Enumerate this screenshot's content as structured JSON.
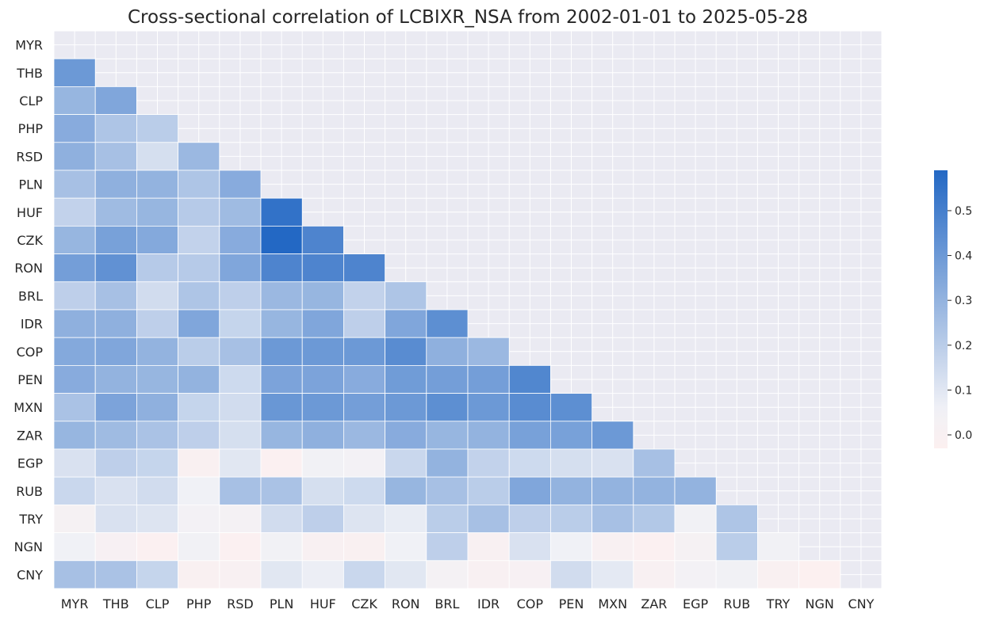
{
  "chart_data": {
    "type": "heatmap",
    "title": "Cross-sectional correlation of LCBIXR_NSA from 2002-01-01 to 2025-05-28",
    "mask": "upper-triangle-including-diagonal",
    "row_labels": [
      "MYR",
      "THB",
      "CLP",
      "PHP",
      "RSD",
      "PLN",
      "HUF",
      "CZK",
      "RON",
      "BRL",
      "IDR",
      "COP",
      "PEN",
      "MXN",
      "ZAR",
      "EGP",
      "RUB",
      "TRY",
      "NGN",
      "CNY"
    ],
    "col_labels": [
      "MYR",
      "THB",
      "CLP",
      "PHP",
      "RSD",
      "PLN",
      "HUF",
      "CZK",
      "RON",
      "BRL",
      "IDR",
      "COP",
      "PEN",
      "MXN",
      "ZAR",
      "EGP",
      "RUB",
      "TRY",
      "NGN",
      "CNY"
    ],
    "values": [
      [],
      [
        0.4
      ],
      [
        0.29,
        0.35
      ],
      [
        0.33,
        0.23,
        0.2
      ],
      [
        0.31,
        0.25,
        0.13,
        0.28
      ],
      [
        0.25,
        0.31,
        0.3,
        0.23,
        0.33
      ],
      [
        0.18,
        0.27,
        0.29,
        0.21,
        0.27,
        0.55
      ],
      [
        0.29,
        0.37,
        0.34,
        0.18,
        0.33,
        0.59,
        0.48
      ],
      [
        0.38,
        0.43,
        0.21,
        0.21,
        0.35,
        0.48,
        0.48,
        0.48
      ],
      [
        0.19,
        0.25,
        0.14,
        0.23,
        0.19,
        0.28,
        0.29,
        0.18,
        0.23
      ],
      [
        0.31,
        0.31,
        0.19,
        0.35,
        0.17,
        0.29,
        0.35,
        0.19,
        0.35,
        0.44
      ],
      [
        0.34,
        0.35,
        0.3,
        0.2,
        0.25,
        0.4,
        0.4,
        0.4,
        0.45,
        0.31,
        0.28
      ],
      [
        0.33,
        0.3,
        0.29,
        0.3,
        0.15,
        0.36,
        0.36,
        0.33,
        0.39,
        0.38,
        0.38,
        0.47
      ],
      [
        0.24,
        0.36,
        0.31,
        0.17,
        0.14,
        0.41,
        0.4,
        0.38,
        0.4,
        0.44,
        0.4,
        0.45,
        0.44
      ],
      [
        0.29,
        0.27,
        0.24,
        0.19,
        0.13,
        0.29,
        0.31,
        0.28,
        0.33,
        0.29,
        0.3,
        0.37,
        0.37,
        0.4
      ],
      [
        0.12,
        0.19,
        0.17,
        -0.01,
        0.1,
        -0.02,
        0.05,
        0.04,
        0.16,
        0.3,
        0.18,
        0.15,
        0.13,
        0.12,
        0.25
      ],
      [
        0.16,
        0.12,
        0.14,
        0.06,
        0.25,
        0.24,
        0.13,
        0.15,
        0.29,
        0.25,
        0.2,
        0.35,
        0.3,
        0.3,
        0.3,
        0.3
      ],
      [
        0.02,
        0.12,
        0.11,
        0.04,
        0.03,
        0.14,
        0.19,
        0.11,
        0.08,
        0.2,
        0.25,
        0.19,
        0.2,
        0.25,
        0.22,
        0.05,
        0.23
      ],
      [
        0.06,
        0.01,
        -0.02,
        0.05,
        -0.02,
        0.05,
        0.0,
        -0.01,
        0.06,
        0.19,
        0.0,
        0.12,
        0.06,
        0.0,
        -0.02,
        0.02,
        0.2,
        0.05
      ],
      [
        0.25,
        0.24,
        0.17,
        -0.01,
        0.0,
        0.1,
        0.07,
        0.16,
        0.1,
        0.03,
        0.0,
        0.01,
        0.14,
        0.09,
        0.0,
        0.04,
        0.05,
        -0.01,
        -0.03
      ]
    ],
    "vmin": -0.03,
    "vmax": 0.59,
    "colorbar": {
      "ticks": [
        0.0,
        0.1,
        0.2,
        0.3,
        0.4,
        0.5
      ],
      "tick_labels": [
        "0.0",
        "0.1",
        "0.2",
        "0.3",
        "0.4",
        "0.5"
      ]
    },
    "colors": {
      "low": "#fcf0f0",
      "mid": "#f0f1f6",
      "high": "#2368c4",
      "background": "#eaeaf2",
      "grid": "#ffffff"
    }
  }
}
